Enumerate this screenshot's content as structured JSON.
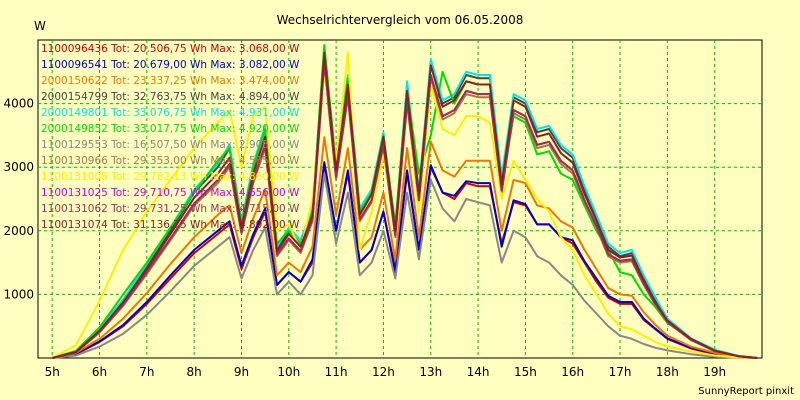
{
  "chart_data": {
    "type": "line",
    "title": "Wechselrichtervergleich vom 06.05.2008",
    "ylabel": "W",
    "xlabel": "",
    "xlim": [
      4.7,
      20.0
    ],
    "ylim": [
      0,
      5000
    ],
    "grid": true,
    "legend_position": "top-left",
    "x_ticks": [
      5,
      6,
      7,
      8,
      9,
      10,
      11,
      12,
      13,
      14,
      15,
      16,
      17,
      18,
      19
    ],
    "x_tick_labels": [
      "5h",
      "6h",
      "7h",
      "8h",
      "9h",
      "10h",
      "11h",
      "12h",
      "13h",
      "14h",
      "15h",
      "16h",
      "17h",
      "18h",
      "19h"
    ],
    "y_ticks": [
      1000,
      2000,
      3000,
      4000
    ],
    "y_tick_labels": [
      "1000",
      "2000",
      "3000",
      "4000"
    ],
    "x": [
      5.0,
      5.5,
      6.0,
      6.5,
      7.0,
      7.5,
      8.0,
      8.5,
      8.75,
      9.0,
      9.25,
      9.5,
      9.75,
      10.0,
      10.25,
      10.5,
      10.75,
      11.0,
      11.25,
      11.5,
      11.75,
      12.0,
      12.25,
      12.5,
      12.75,
      13.0,
      13.25,
      13.5,
      13.75,
      14.0,
      14.25,
      14.5,
      14.75,
      15.0,
      15.25,
      15.5,
      15.75,
      16.0,
      16.25,
      16.5,
      16.75,
      17.0,
      17.25,
      17.5,
      17.75,
      18.0,
      18.5,
      19.0,
      19.5,
      19.9
    ],
    "series": [
      {
        "name": "1100096436 Tot: 20.506,75 Wh Max: 3.068,00 W",
        "color": "#cc0000",
        "values": [
          0,
          60,
          250,
          500,
          850,
          1250,
          1650,
          1950,
          2100,
          1400,
          1900,
          2300,
          1150,
          1350,
          1200,
          1500,
          3050,
          2000,
          2900,
          1500,
          1700,
          2300,
          1400,
          2900,
          1700,
          3000,
          2600,
          2500,
          2750,
          2700,
          2700,
          1800,
          2450,
          2400,
          2100,
          2100,
          1900,
          1800,
          1500,
          1200,
          950,
          850,
          850,
          600,
          450,
          300,
          150,
          60,
          10,
          0
        ]
      },
      {
        "name": "1100096541 Tot: 20.679,00 Wh Max: 3.082,00 W",
        "color": "#0000cc",
        "values": [
          0,
          70,
          260,
          520,
          880,
          1300,
          1700,
          2000,
          2150,
          1450,
          1950,
          2350,
          1150,
          1350,
          1200,
          1550,
          3080,
          2000,
          2950,
          1500,
          1700,
          2300,
          1350,
          2950,
          1700,
          3030,
          2600,
          2550,
          2780,
          2750,
          2750,
          1750,
          2480,
          2420,
          2100,
          2100,
          1900,
          1850,
          1520,
          1250,
          980,
          880,
          880,
          620,
          460,
          310,
          160,
          70,
          15,
          0
        ]
      },
      {
        "name": "2000150622 Tot: 23.337,25 Wh Max: 3.474,00 W",
        "color": "#ee7700",
        "values": [
          0,
          80,
          300,
          620,
          1020,
          1480,
          1900,
          2250,
          2400,
          1650,
          2200,
          2650,
          1300,
          1500,
          1350,
          1750,
          3470,
          2250,
          3300,
          1700,
          1900,
          2600,
          1550,
          3300,
          1900,
          3400,
          2950,
          2850,
          3100,
          3100,
          3100,
          2000,
          2800,
          2750,
          2400,
          2350,
          2150,
          2050,
          1700,
          1400,
          1100,
          1000,
          980,
          720,
          520,
          350,
          180,
          80,
          20,
          0
        ]
      },
      {
        "name": "2000154799 Tot: 32.763,75 Wh Max: 4.894,00 W",
        "color": "#444444",
        "values": [
          0,
          100,
          450,
          900,
          1450,
          2000,
          2600,
          3000,
          3300,
          2100,
          3000,
          3600,
          1700,
          2000,
          1800,
          2300,
          4850,
          3000,
          4400,
          2300,
          2600,
          3500,
          2000,
          4300,
          2600,
          4650,
          4000,
          4100,
          4450,
          4400,
          4400,
          2800,
          4100,
          4000,
          3550,
          3600,
          3300,
          3150,
          2650,
          2200,
          1750,
          1600,
          1650,
          1250,
          900,
          600,
          300,
          120,
          30,
          0
        ]
      },
      {
        "name": "2000149801 Tot: 33.076,75 Wh Max: 4.931,00 W",
        "color": "#00e5e5",
        "values": [
          0,
          110,
          460,
          920,
          1480,
          2050,
          2650,
          3050,
          3350,
          2150,
          3050,
          3650,
          1750,
          2050,
          1850,
          2350,
          4900,
          3050,
          4450,
          2350,
          2650,
          3550,
          2050,
          4350,
          2650,
          4700,
          4050,
          4150,
          4500,
          4450,
          4450,
          2850,
          4150,
          4050,
          3600,
          3650,
          3350,
          3200,
          2700,
          2250,
          1800,
          1650,
          1700,
          1300,
          950,
          620,
          310,
          130,
          35,
          0
        ]
      },
      {
        "name": "2000149852 Tot: 33.017,75 Wh Max: 4.920,00 W",
        "color": "#00dd00",
        "values": [
          0,
          110,
          480,
          1000,
          1500,
          2050,
          2600,
          3100,
          3300,
          2100,
          3000,
          3600,
          1800,
          2000,
          1800,
          2300,
          4920,
          3000,
          4400,
          2300,
          2600,
          3500,
          2100,
          4200,
          2900,
          3500,
          4500,
          4000,
          4350,
          4300,
          4300,
          2700,
          3800,
          3700,
          3200,
          3250,
          2900,
          2800,
          2400,
          2000,
          1700,
          1350,
          1300,
          1000,
          800,
          550,
          300,
          120,
          30,
          0
        ]
      },
      {
        "name": "1100129553 Tot: 16.507,50 Wh Max: 2.905,00 W",
        "color": "#888888",
        "values": [
          0,
          40,
          180,
          380,
          680,
          1050,
          1450,
          1750,
          1900,
          1250,
          1700,
          2050,
          1000,
          1200,
          1000,
          1300,
          2900,
          1800,
          2600,
          1300,
          1500,
          2000,
          1250,
          2600,
          1550,
          2800,
          2350,
          2150,
          2500,
          2450,
          2400,
          1500,
          2000,
          1900,
          1600,
          1500,
          1300,
          1150,
          900,
          700,
          500,
          350,
          300,
          220,
          160,
          120,
          60,
          20,
          5,
          0
        ]
      },
      {
        "name": "1100130966 Tot: 29.353,00 Wh Max: 4.585,00 W",
        "color": "#aa7744",
        "values": [
          0,
          90,
          400,
          820,
          1320,
          1850,
          2400,
          2750,
          3000,
          1950,
          2750,
          3300,
          1600,
          1850,
          1650,
          2150,
          4580,
          2800,
          4100,
          2150,
          2450,
          3300,
          1900,
          4000,
          2450,
          4400,
          3750,
          3850,
          4150,
          4100,
          4100,
          2600,
          3850,
          3750,
          3300,
          3350,
          3050,
          2900,
          2450,
          2050,
          1600,
          1500,
          1520,
          1150,
          830,
          560,
          280,
          110,
          28,
          0
        ]
      },
      {
        "name": "1100131008 Tot: 29.782,13 Wh Max: 4.860,00 W",
        "color": "#ffee00",
        "values": [
          0,
          200,
          900,
          1700,
          2300,
          2800,
          3300,
          3700,
          3900,
          3000,
          3800,
          3950,
          2000,
          2100,
          1700,
          2500,
          4500,
          3100,
          4800,
          1700,
          2300,
          3200,
          2000,
          4100,
          2300,
          4300,
          3600,
          3500,
          3800,
          3800,
          3700,
          2500,
          3100,
          2800,
          2500,
          2300,
          1900,
          1700,
          1300,
          1000,
          700,
          500,
          450,
          350,
          250,
          180,
          100,
          40,
          10,
          0
        ]
      },
      {
        "name": "1100131025 Tot: 29.710,75 Wh Max: 4.656,00 W",
        "color": "#cc00cc",
        "values": [
          0,
          90,
          410,
          840,
          1350,
          1880,
          2430,
          2800,
          3050,
          1980,
          2800,
          3350,
          1630,
          1880,
          1680,
          2180,
          4650,
          2850,
          4150,
          2180,
          2480,
          3350,
          1930,
          4050,
          2480,
          4450,
          3800,
          3900,
          4200,
          4150,
          4150,
          2630,
          3900,
          3800,
          3350,
          3400,
          3100,
          2950,
          2480,
          2080,
          1630,
          1530,
          1550,
          1170,
          850,
          570,
          290,
          110,
          28,
          0
        ]
      },
      {
        "name": "1100131062 Tot: 29.731,25 Wh Max: 4.715,00 W",
        "color": "#993355",
        "values": [
          0,
          90,
          410,
          840,
          1350,
          1880,
          2430,
          2800,
          3050,
          1980,
          2800,
          3350,
          1630,
          1880,
          1680,
          2180,
          4700,
          2850,
          4150,
          2180,
          2480,
          3350,
          1930,
          4050,
          2480,
          4450,
          3800,
          3900,
          4200,
          4150,
          4150,
          2630,
          3900,
          3800,
          3350,
          3400,
          3100,
          2950,
          2480,
          2080,
          1630,
          1530,
          1550,
          1170,
          850,
          570,
          290,
          110,
          28,
          0
        ]
      },
      {
        "name": "1100131074 Tot: 31.136,75 Wh Max: 4.802,00 W",
        "color": "#882222",
        "values": [
          0,
          95,
          430,
          880,
          1400,
          1950,
          2520,
          2900,
          3150,
          2050,
          2900,
          3480,
          1680,
          1950,
          1750,
          2250,
          4800,
          2950,
          4300,
          2250,
          2570,
          3480,
          2000,
          4200,
          2570,
          4600,
          3950,
          4050,
          4350,
          4300,
          4300,
          2730,
          4050,
          3950,
          3480,
          3530,
          3220,
          3070,
          2580,
          2160,
          1700,
          1580,
          1610,
          1220,
          880,
          590,
          300,
          115,
          29,
          0
        ]
      }
    ],
    "credit": "SunnyReport pinxit"
  }
}
